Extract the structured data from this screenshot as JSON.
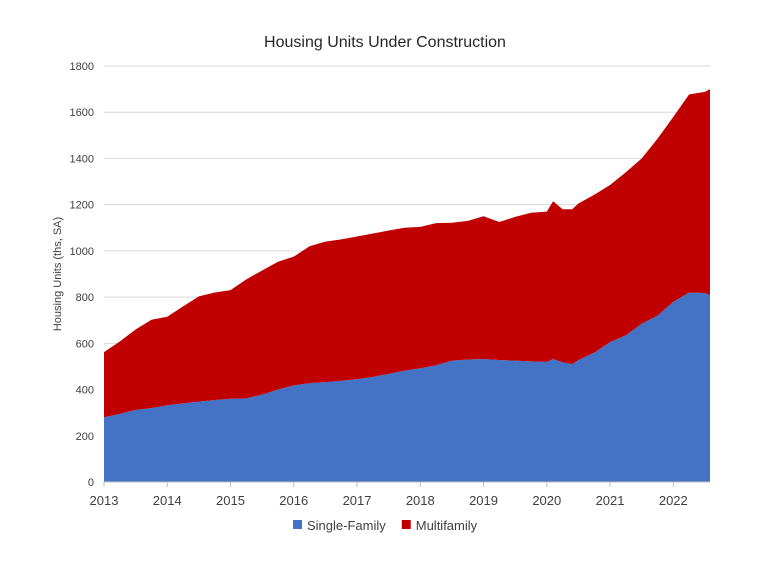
{
  "chart_data": {
    "type": "area",
    "stacked": true,
    "title": "Housing Units Under Construction",
    "xlabel": "",
    "ylabel": "Housing Units (ths, SA)",
    "xlim": [
      2013.0,
      2022.58
    ],
    "ylim": [
      0,
      1800
    ],
    "yticks": [
      0,
      200,
      400,
      600,
      800,
      1000,
      1200,
      1400,
      1600,
      1800
    ],
    "xticks": [
      2013,
      2014,
      2015,
      2016,
      2017,
      2018,
      2019,
      2020,
      2021,
      2022
    ],
    "grid": "horizontal",
    "legend": "bottom-center",
    "x": [
      2013.0,
      2013.25,
      2013.5,
      2013.75,
      2014.0,
      2014.25,
      2014.5,
      2014.75,
      2015.0,
      2015.25,
      2015.5,
      2015.75,
      2016.0,
      2016.25,
      2016.5,
      2016.75,
      2017.0,
      2017.25,
      2017.5,
      2017.75,
      2018.0,
      2018.25,
      2018.5,
      2018.75,
      2019.0,
      2019.25,
      2019.5,
      2019.75,
      2020.0,
      2020.1,
      2020.25,
      2020.4,
      2020.5,
      2020.75,
      2021.0,
      2021.25,
      2021.5,
      2021.75,
      2022.0,
      2022.25,
      2022.5,
      2022.58
    ],
    "series": [
      {
        "name": "Single-Family",
        "color": "#4472C4",
        "values": [
          280,
          295,
          312,
          320,
          332,
          340,
          348,
          355,
          360,
          362,
          378,
          400,
          418,
          428,
          432,
          438,
          445,
          455,
          468,
          482,
          492,
          505,
          525,
          530,
          532,
          528,
          525,
          522,
          520,
          532,
          518,
          510,
          528,
          560,
          605,
          635,
          685,
          720,
          780,
          820,
          818,
          808
        ]
      },
      {
        "name": "Multifamily",
        "color": "#C00000",
        "values": [
          282,
          313,
          348,
          382,
          383,
          420,
          455,
          465,
          470,
          515,
          537,
          553,
          557,
          592,
          608,
          612,
          617,
          620,
          620,
          618,
          612,
          615,
          597,
          600,
          618,
          597,
          622,
          643,
          650,
          683,
          662,
          670,
          677,
          683,
          680,
          705,
          715,
          765,
          800,
          857,
          870,
          892
        ]
      }
    ]
  }
}
